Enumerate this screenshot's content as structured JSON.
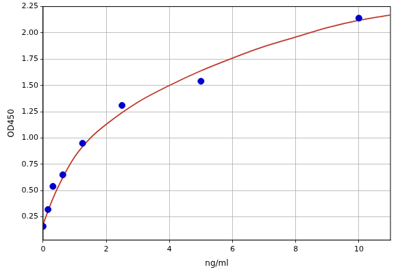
{
  "chart_data": {
    "type": "scatter",
    "x_label": "ng/ml",
    "y_label": "OD450",
    "xlim": [
      0,
      11
    ],
    "xticks": [
      0,
      2,
      4,
      6,
      8,
      10
    ],
    "ylim": [
      0.03,
      2.25
    ],
    "yticks": [
      0.25,
      {
        "value": 0.5,
        "label": "0.50"
      },
      0.75,
      {
        "value": 1.0,
        "label": "1.00"
      },
      1.25,
      {
        "value": 1.5,
        "label": "1.50"
      },
      1.75,
      {
        "value": 2.0,
        "label": "2.00"
      },
      2.25
    ],
    "grid": true,
    "series": [
      {
        "type": "scatter",
        "color": "#0000cc",
        "marker": "circle",
        "x": [
          0,
          0.156,
          0.3125,
          0.625,
          1.25,
          2.5,
          5,
          10
        ],
        "values": [
          0.16,
          0.32,
          0.54,
          0.65,
          0.95,
          1.31,
          1.54,
          2.14
        ]
      },
      {
        "type": "line",
        "color": "#c0392b",
        "line_style": "solid",
        "x": [
          0,
          0.1,
          0.25,
          0.5,
          1,
          1.5,
          2,
          3,
          4,
          5,
          6,
          7,
          8,
          9,
          10,
          11
        ],
        "values": [
          0.18,
          0.26,
          0.38,
          0.55,
          0.82,
          1.0,
          1.13,
          1.34,
          1.5,
          1.64,
          1.76,
          1.87,
          1.96,
          2.05,
          2.12,
          2.17
        ]
      }
    ]
  }
}
